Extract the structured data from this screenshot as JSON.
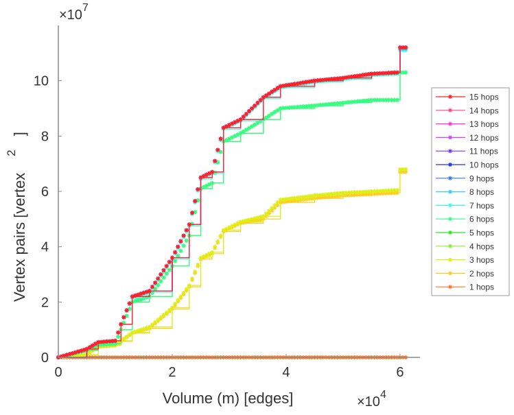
{
  "chart_data": {
    "type": "line",
    "title": "",
    "xlabel": "Volume (m) [edges]",
    "ylabel": "Vertex pairs [vertex",
    "ylabel_superscript": "2",
    "ylabel_close": "]",
    "x_multiplier": "×10",
    "x_multiplier_exp": "4",
    "y_multiplier": "×10",
    "y_multiplier_exp": "7",
    "xlim": [
      0,
      6.35
    ],
    "ylim": [
      0,
      12
    ],
    "xticks": [
      0,
      2,
      4,
      6
    ],
    "xtick_labels": [
      "0",
      "2",
      "4",
      "6"
    ],
    "yticks": [
      0,
      2,
      4,
      6,
      8,
      10
    ],
    "ytick_labels": [
      "0",
      "2",
      "4",
      "6",
      "8",
      "10"
    ],
    "grid": false,
    "legend_position": "right",
    "x": [
      0,
      0.5,
      0.7,
      1.0,
      1.1,
      1.3,
      1.6,
      2.0,
      2.3,
      2.5,
      2.7,
      2.9,
      3.2,
      3.6,
      3.9,
      4.5,
      5.0,
      5.5,
      5.95,
      6.0,
      6.1
    ],
    "series": [
      {
        "name": "15 hops",
        "color": "#ff2020",
        "values": [
          0,
          0.3,
          0.55,
          0.6,
          1.2,
          2.2,
          2.4,
          3.6,
          4.8,
          6.5,
          6.7,
          8.3,
          8.6,
          9.4,
          9.8,
          10.0,
          10.1,
          10.25,
          10.3,
          11.2,
          11.2
        ]
      },
      {
        "name": "14 hops",
        "color": "#ff4488",
        "values": [
          0,
          0.3,
          0.55,
          0.6,
          1.2,
          2.2,
          2.4,
          3.6,
          4.8,
          6.5,
          6.7,
          8.3,
          8.6,
          9.4,
          9.8,
          10.0,
          10.1,
          10.25,
          10.3,
          11.2,
          11.2
        ]
      },
      {
        "name": "13 hops",
        "color": "#ff33dd",
        "values": [
          0,
          0.3,
          0.55,
          0.6,
          1.2,
          2.2,
          2.4,
          3.6,
          4.8,
          6.5,
          6.7,
          8.3,
          8.6,
          9.4,
          9.8,
          10.0,
          10.1,
          10.25,
          10.3,
          11.2,
          11.2
        ]
      },
      {
        "name": "12 hops",
        "color": "#cc44ff",
        "values": [
          0,
          0.3,
          0.55,
          0.6,
          1.2,
          2.2,
          2.4,
          3.6,
          4.8,
          6.5,
          6.7,
          8.3,
          8.6,
          9.4,
          9.8,
          10.0,
          10.1,
          10.25,
          10.3,
          11.2,
          11.2
        ]
      },
      {
        "name": "11 hops",
        "color": "#7733ff",
        "values": [
          0,
          0.3,
          0.55,
          0.6,
          1.2,
          2.2,
          2.4,
          3.6,
          4.8,
          6.5,
          6.7,
          8.3,
          8.6,
          9.4,
          9.8,
          10.0,
          10.1,
          10.25,
          10.3,
          11.2,
          11.2
        ]
      },
      {
        "name": "10 hops",
        "color": "#2233ee",
        "values": [
          0,
          0.3,
          0.55,
          0.6,
          1.2,
          2.2,
          2.4,
          3.6,
          4.8,
          6.5,
          6.7,
          8.3,
          8.6,
          9.4,
          9.8,
          10.0,
          10.1,
          10.25,
          10.3,
          11.2,
          11.2
        ]
      },
      {
        "name": "9 hops",
        "color": "#3377ff",
        "values": [
          0,
          0.3,
          0.55,
          0.6,
          1.2,
          2.2,
          2.4,
          3.6,
          4.8,
          6.5,
          6.7,
          8.3,
          8.6,
          9.4,
          9.8,
          10.0,
          10.1,
          10.25,
          10.3,
          11.2,
          11.2
        ]
      },
      {
        "name": "8 hops",
        "color": "#33ccff",
        "values": [
          0,
          0.3,
          0.55,
          0.6,
          1.2,
          2.2,
          2.4,
          3.6,
          4.8,
          6.5,
          6.7,
          8.3,
          8.6,
          9.4,
          9.8,
          10.0,
          10.1,
          10.25,
          10.3,
          11.15,
          11.15
        ]
      },
      {
        "name": "7 hops",
        "color": "#33ffdd",
        "values": [
          0,
          0.3,
          0.55,
          0.6,
          1.2,
          2.15,
          2.35,
          3.55,
          4.75,
          6.45,
          6.65,
          8.25,
          8.55,
          9.35,
          9.75,
          9.95,
          10.05,
          10.2,
          10.25,
          11.1,
          11.1
        ]
      },
      {
        "name": "6 hops",
        "color": "#33ff88",
        "values": [
          0,
          0.25,
          0.45,
          0.5,
          1.0,
          2.0,
          2.2,
          3.3,
          4.4,
          6.1,
          6.3,
          7.8,
          8.1,
          8.6,
          9.0,
          9.1,
          9.2,
          9.3,
          9.3,
          10.3,
          10.3
        ]
      },
      {
        "name": "5 hops",
        "color": "#22ee22",
        "values": [
          0,
          0.25,
          0.45,
          0.5,
          1.0,
          2.0,
          2.2,
          3.3,
          4.4,
          6.1,
          6.3,
          7.8,
          8.1,
          8.6,
          9.0,
          9.1,
          9.2,
          9.3,
          9.3,
          10.3,
          10.3
        ]
      },
      {
        "name": "4 hops",
        "color": "#88ee33",
        "values": [
          0,
          0.25,
          0.45,
          0.5,
          1.0,
          2.0,
          2.2,
          3.3,
          4.4,
          6.1,
          6.3,
          7.8,
          8.1,
          8.6,
          9.0,
          9.1,
          9.2,
          9.3,
          9.3,
          10.3,
          10.3
        ]
      },
      {
        "name": "3 hops",
        "color": "#ddee11",
        "values": [
          0,
          0.1,
          0.4,
          0.45,
          0.6,
          0.9,
          1.1,
          1.8,
          2.6,
          3.6,
          3.8,
          4.6,
          4.9,
          5.1,
          5.7,
          5.85,
          5.95,
          6.0,
          6.05,
          6.8,
          6.8
        ]
      },
      {
        "name": "2 hops",
        "color": "#ffcc22",
        "values": [
          0,
          0.1,
          0.38,
          0.43,
          0.58,
          0.88,
          1.05,
          1.75,
          2.55,
          3.55,
          3.75,
          4.55,
          4.85,
          5.0,
          5.6,
          5.75,
          5.85,
          5.9,
          5.95,
          6.7,
          6.7
        ]
      },
      {
        "name": "1 hops",
        "color": "#ff7722",
        "values": [
          0,
          0,
          0,
          0,
          0,
          0,
          0,
          0,
          0,
          0,
          0,
          0,
          0,
          0,
          0,
          0,
          0,
          0,
          0,
          0,
          0
        ]
      }
    ]
  }
}
